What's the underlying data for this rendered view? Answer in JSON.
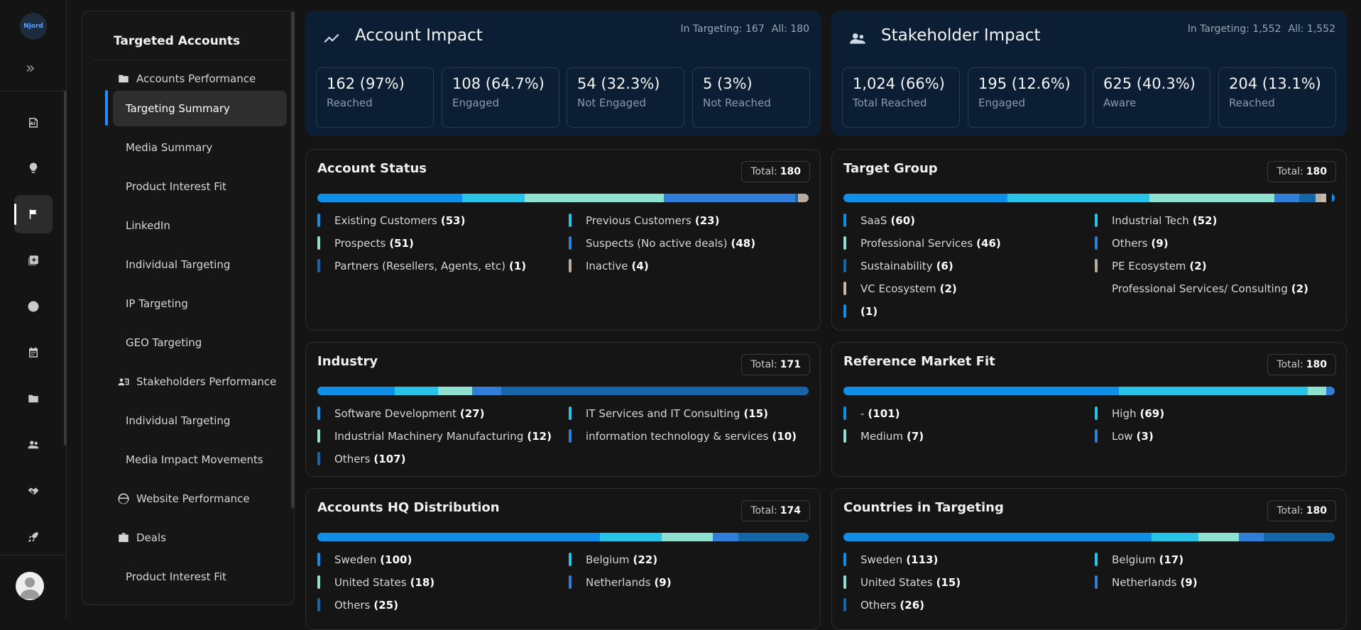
{
  "app": {
    "logo_text": "Njord"
  },
  "sidebar": {
    "title": "Targeted Accounts",
    "groups": [
      {
        "label": "Accounts Performance",
        "icon": "accounts-performance-icon"
      },
      {
        "label": "Stakeholders Performance",
        "icon": "stakeholders-performance-icon"
      },
      {
        "label": "Website Performance",
        "icon": "website-performance-icon"
      },
      {
        "label": "Deals",
        "icon": "briefcase-icon"
      }
    ],
    "items": {
      "targeting_summary": "Targeting Summary",
      "media_summary": "Media Summary",
      "product_interest_fit": "Product Interest Fit",
      "linkedin": "LinkedIn",
      "individual_targeting": "Individual Targeting",
      "ip_targeting": "IP Targeting",
      "geo_targeting": "GEO Targeting",
      "stakeholder_individual_targeting": "Individual Targeting",
      "media_impact_movements": "Media Impact Movements",
      "deals_product_interest_fit": "Product Interest Fit"
    }
  },
  "account_impact": {
    "title": "Account Impact",
    "in_targeting": "In Targeting: 167",
    "all": "All: 180",
    "stats": [
      {
        "value": "162 (97%)",
        "label": "Reached"
      },
      {
        "value": "108 (64.7%)",
        "label": "Engaged"
      },
      {
        "value": "54 (32.3%)",
        "label": "Not Engaged"
      },
      {
        "value": "5 (3%)",
        "label": "Not Reached"
      }
    ]
  },
  "stakeholder_impact": {
    "title": "Stakeholder Impact",
    "in_targeting": "In Targeting: 1,552",
    "all": "All: 1,552",
    "stats": [
      {
        "value": "1,024 (66%)",
        "label": "Total Reached"
      },
      {
        "value": "195 (12.6%)",
        "label": "Engaged"
      },
      {
        "value": "625 (40.3%)",
        "label": "Aware"
      },
      {
        "value": "204 (13.1%)",
        "label": "Reached"
      }
    ]
  },
  "account_status": {
    "title": "Account Status",
    "total_label": "Total:",
    "total": "180",
    "items": [
      {
        "label": "Existing Customers",
        "count": "(53)",
        "value": 53,
        "color": "#0f8fe8"
      },
      {
        "label": "Previous Customers",
        "count": "(23)",
        "value": 23,
        "color": "#27c4e8"
      },
      {
        "label": "Prospects",
        "count": "(51)",
        "value": 51,
        "color": "#8ee0d0"
      },
      {
        "label": "Suspects (No active deals)",
        "count": "(48)",
        "value": 48,
        "color": "#2f7fd8"
      },
      {
        "label": "Partners (Resellers, Agents, etc)",
        "count": "(1)",
        "value": 1,
        "color": "#1566a8"
      },
      {
        "label": "Inactive",
        "count": "(4)",
        "value": 4,
        "color": "#b8aca0"
      }
    ]
  },
  "target_group": {
    "title": "Target Group",
    "total_label": "Total:",
    "total": "180",
    "items": [
      {
        "label": "SaaS",
        "count": "(60)",
        "value": 60,
        "color": "#0f8fe8"
      },
      {
        "label": "Industrial Tech",
        "count": "(52)",
        "value": 52,
        "color": "#27c4e8"
      },
      {
        "label": "Professional Services",
        "count": "(46)",
        "value": 46,
        "color": "#8ee0d0"
      },
      {
        "label": "Others",
        "count": "(9)",
        "value": 9,
        "color": "#2f7fd8"
      },
      {
        "label": "Sustainability",
        "count": "(6)",
        "value": 6,
        "color": "#1566a8"
      },
      {
        "label": "PE Ecosystem",
        "count": "(2)",
        "value": 2,
        "color": "#b8aca0"
      },
      {
        "label": "VC Ecosystem",
        "count": "(2)",
        "value": 2,
        "color": "#c8b8a8"
      },
      {
        "label": "Professional Services/ Consulting",
        "count": "(2)",
        "value": 2,
        "color": "#141414"
      },
      {
        "label": "",
        "count": "(1)",
        "value": 1,
        "color": "#0f8fe8"
      }
    ]
  },
  "industry": {
    "title": "Industry",
    "total_label": "Total:",
    "total": "171",
    "items": [
      {
        "label": "Software Development",
        "count": "(27)",
        "value": 27,
        "color": "#0f8fe8"
      },
      {
        "label": "IT Services and IT Consulting",
        "count": "(15)",
        "value": 15,
        "color": "#27c4e8"
      },
      {
        "label": "Industrial Machinery Manufacturing",
        "count": "(12)",
        "value": 12,
        "color": "#8ee0d0"
      },
      {
        "label": "information technology & services",
        "count": "(10)",
        "value": 10,
        "color": "#2f7fd8"
      },
      {
        "label": "Others",
        "count": "(107)",
        "value": 107,
        "color": "#1566a8"
      }
    ]
  },
  "reference_market_fit": {
    "title": "Reference Market Fit",
    "total_label": "Total:",
    "total": "180",
    "items": [
      {
        "label": "-",
        "count": "(101)",
        "value": 101,
        "color": "#0f8fe8"
      },
      {
        "label": "High",
        "count": "(69)",
        "value": 69,
        "color": "#27c4e8"
      },
      {
        "label": "Medium",
        "count": "(7)",
        "value": 7,
        "color": "#8ee0d0"
      },
      {
        "label": "Low",
        "count": "(3)",
        "value": 3,
        "color": "#2f7fd8"
      }
    ]
  },
  "hq_distribution": {
    "title": "Accounts HQ Distribution",
    "total_label": "Total:",
    "total": "174",
    "items": [
      {
        "label": "Sweden",
        "count": "(100)",
        "value": 100,
        "color": "#0f8fe8"
      },
      {
        "label": "Belgium",
        "count": "(22)",
        "value": 22,
        "color": "#27c4e8"
      },
      {
        "label": "United States",
        "count": "(18)",
        "value": 18,
        "color": "#8ee0d0"
      },
      {
        "label": "Netherlands",
        "count": "(9)",
        "value": 9,
        "color": "#2f7fd8"
      },
      {
        "label": "Others",
        "count": "(25)",
        "value": 25,
        "color": "#1566a8"
      }
    ]
  },
  "countries": {
    "title": "Countries in Targeting",
    "total_label": "Total:",
    "total": "180",
    "items": [
      {
        "label": "Sweden",
        "count": "(113)",
        "value": 113,
        "color": "#0f8fe8"
      },
      {
        "label": "Belgium",
        "count": "(17)",
        "value": 17,
        "color": "#27c4e8"
      },
      {
        "label": "United States",
        "count": "(15)",
        "value": 15,
        "color": "#8ee0d0"
      },
      {
        "label": "Netherlands",
        "count": "(9)",
        "value": 9,
        "color": "#2f7fd8"
      },
      {
        "label": "Others",
        "count": "(26)",
        "value": 26,
        "color": "#1566a8"
      }
    ]
  }
}
